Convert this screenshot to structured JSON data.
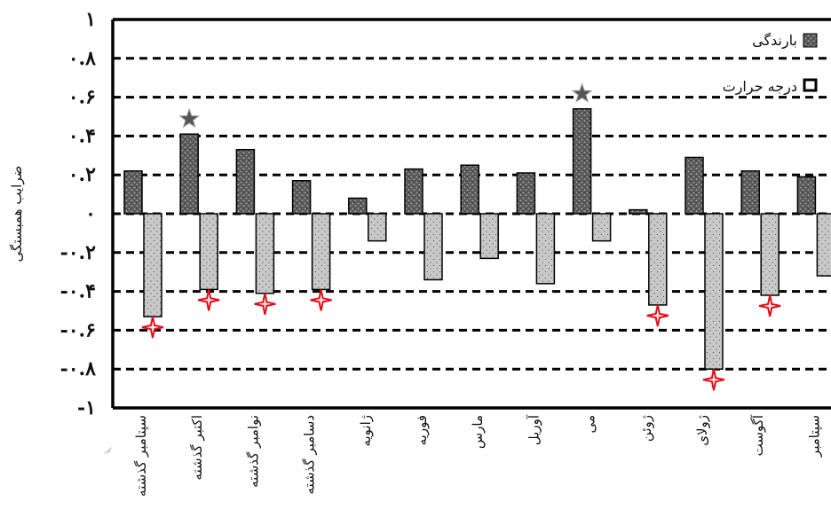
{
  "chart_data": {
    "type": "bar",
    "ylabel": "ضرایب همبستگی",
    "ylim": [
      -1,
      1
    ],
    "yticks": [
      "۱",
      "۰.۸",
      "۰.۶",
      "۰.۴",
      "۰.۲",
      "۰",
      "-۰.۲",
      "-۰.۴",
      "-۰.۶",
      "-۰.۸",
      "-۱"
    ],
    "ytick_values": [
      1,
      0.8,
      0.6,
      0.4,
      0.2,
      0,
      -0.2,
      -0.4,
      -0.6,
      -0.8,
      -1
    ],
    "grid": "horizontal dashed",
    "legend_position": "top-right",
    "categories": [
      "سپتامبر گذشته",
      "اکتبر گذشته",
      "نوامبر گذشته",
      "دسامبر گذشته",
      "ژانویه",
      "فوریه",
      "مارس",
      "آوریل",
      "می",
      "ژوئن",
      "ژولای",
      "آگوست",
      "سپتامبر"
    ],
    "series": [
      {
        "name": "بارندگی",
        "color": "#5a5a5a",
        "values": [
          0.22,
          0.41,
          0.33,
          0.17,
          0.08,
          0.23,
          0.25,
          0.21,
          0.54,
          0.02,
          0.29,
          0.22,
          0.19
        ],
        "significant": [
          false,
          true,
          false,
          false,
          false,
          false,
          false,
          false,
          true,
          false,
          false,
          false,
          false
        ],
        "marker": "star"
      },
      {
        "name": "درجه حرارت",
        "color": "#c8c8c8",
        "values": [
          -0.53,
          -0.39,
          -0.41,
          -0.39,
          -0.14,
          -0.34,
          -0.23,
          -0.36,
          -0.14,
          -0.47,
          -0.8,
          -0.42,
          -0.32
        ],
        "significant": [
          true,
          true,
          true,
          true,
          false,
          false,
          false,
          false,
          false,
          true,
          true,
          true,
          false
        ],
        "marker": "red-cross-star"
      }
    ]
  }
}
